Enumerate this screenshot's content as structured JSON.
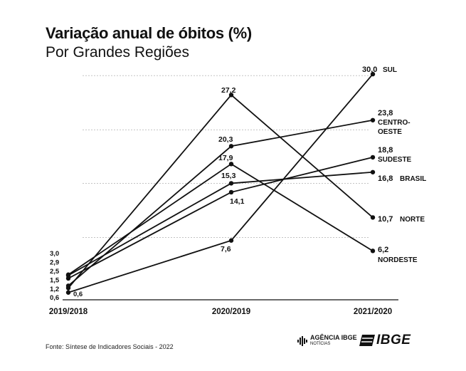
{
  "title": "Variação anual de óbitos (%)",
  "subtitle": "Por Grandes Regiões",
  "source": "Fonte: Síntese de Indicadores Sociais - 2022",
  "agency_logo": {
    "name": "AGÊNCIA IBGE",
    "sub": "NOTÍCIAS"
  },
  "ibge_logo": {
    "text": "IBGE"
  },
  "chart_data": {
    "type": "line",
    "categories": [
      "2019/2018",
      "2020/2019",
      "2021/2020"
    ],
    "ylim": [
      0,
      32
    ],
    "grid": true,
    "series": [
      {
        "name": "SUL",
        "values": [
          0.6,
          7.6,
          30.0
        ],
        "labels": [
          "0,6",
          "7,6",
          "30,0"
        ]
      },
      {
        "name": "CENTRO-OESTE",
        "values": [
          1.5,
          20.3,
          23.8
        ],
        "labels": [
          "1,5",
          "20,3",
          "23,8"
        ]
      },
      {
        "name": "SUDESTE",
        "values": [
          2.5,
          14.1,
          18.8
        ],
        "labels": [
          "2,5",
          "14,1",
          "18,8"
        ]
      },
      {
        "name": "BRASIL",
        "values": [
          2.9,
          15.3,
          16.8
        ],
        "labels": [
          "2,9",
          "15,3",
          "16,8"
        ]
      },
      {
        "name": "NORTE",
        "values": [
          1.2,
          27.2,
          10.7
        ],
        "labels": [
          "1,2",
          "27,2",
          "10,7"
        ]
      },
      {
        "name": "NORDESTE",
        "values": [
          3.0,
          17.9,
          6.2
        ],
        "labels": [
          "3,0",
          "17,9",
          "6,2"
        ]
      }
    ]
  }
}
